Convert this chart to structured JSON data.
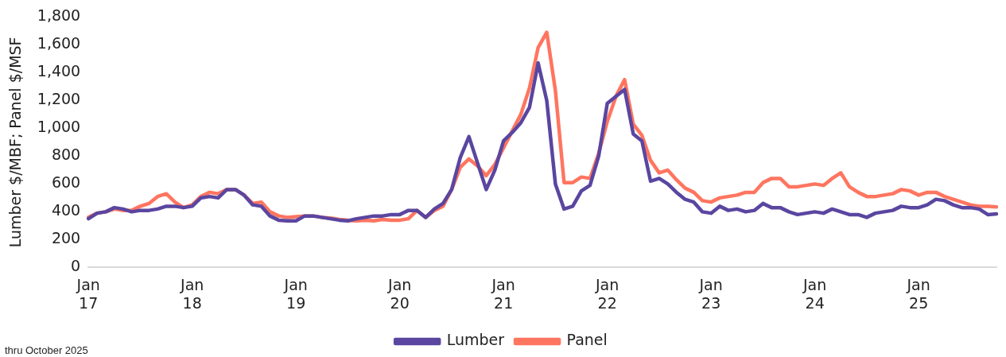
{
  "chart_data": {
    "type": "line",
    "ylabel": "Lumber $/MBF; Panel $/MSF",
    "categories": [
      "Jan\n17",
      null,
      null,
      null,
      null,
      null,
      null,
      null,
      null,
      null,
      null,
      null,
      "Jan\n18",
      null,
      null,
      null,
      null,
      null,
      null,
      null,
      null,
      null,
      null,
      null,
      "Jan\n19",
      null,
      null,
      null,
      null,
      null,
      null,
      null,
      null,
      null,
      null,
      null,
      "Jan\n20",
      null,
      null,
      null,
      null,
      null,
      null,
      null,
      null,
      null,
      null,
      null,
      "Jan\n21",
      null,
      null,
      null,
      null,
      null,
      null,
      null,
      null,
      null,
      null,
      null,
      "Jan\n22",
      null,
      null,
      null,
      null,
      null,
      null,
      null,
      null,
      null,
      null,
      null,
      "Jan\n23",
      null,
      null,
      null,
      null,
      null,
      null,
      null,
      null,
      null,
      null,
      null,
      "Jan\n24",
      null,
      null,
      null,
      null,
      null,
      null,
      null,
      null,
      null,
      null,
      null,
      "Jan\n25",
      null,
      null,
      null,
      null,
      null,
      null,
      null,
      null,
      null
    ],
    "series": [
      {
        "name": "Lumber",
        "color": "#5a46a0",
        "values": [
          350,
          390,
          400,
          430,
          420,
          400,
          410,
          410,
          420,
          440,
          440,
          430,
          440,
          500,
          510,
          500,
          560,
          560,
          520,
          450,
          440,
          370,
          340,
          335,
          335,
          370,
          370,
          360,
          350,
          340,
          335,
          350,
          360,
          370,
          370,
          380,
          380,
          410,
          410,
          360,
          420,
          460,
          560,
          790,
          940,
          750,
          560,
          700,
          910,
          970,
          1040,
          1150,
          1470,
          1200,
          600,
          420,
          440,
          550,
          590,
          800,
          1180,
          1230,
          1280,
          960,
          910,
          620,
          640,
          600,
          540,
          490,
          470,
          400,
          390,
          440,
          410,
          420,
          400,
          410,
          460,
          430,
          430,
          400,
          380,
          390,
          400,
          390,
          420,
          400,
          380,
          380,
          360,
          390,
          400,
          410,
          440,
          430,
          430,
          450,
          490,
          480,
          450,
          430,
          430,
          420,
          380,
          385
        ]
      },
      {
        "name": "Panel",
        "color": "#ff7560",
        "values": [
          360,
          390,
          400,
          420,
          410,
          410,
          440,
          460,
          510,
          530,
          470,
          430,
          450,
          510,
          540,
          530,
          560,
          560,
          520,
          460,
          470,
          400,
          370,
          360,
          365,
          370,
          370,
          360,
          355,
          345,
          340,
          335,
          340,
          335,
          345,
          340,
          340,
          350,
          410,
          360,
          410,
          440,
          560,
          720,
          780,
          730,
          660,
          740,
          860,
          980,
          1100,
          1290,
          1580,
          1690,
          1270,
          610,
          610,
          650,
          640,
          820,
          1050,
          1230,
          1350,
          1030,
          950,
          770,
          680,
          700,
          630,
          570,
          540,
          480,
          470,
          500,
          510,
          520,
          540,
          540,
          610,
          640,
          640,
          580,
          580,
          590,
          600,
          590,
          640,
          680,
          580,
          540,
          510,
          510,
          520,
          530,
          560,
          550,
          520,
          540,
          540,
          510,
          490,
          470,
          450,
          440,
          440,
          435
        ]
      }
    ],
    "ylim": [
      0,
      1800
    ],
    "yticks": [
      0,
      200,
      400,
      600,
      800,
      {
        "value": 1000,
        "label": "1,000"
      },
      {
        "value": 1200,
        "label": "1,200"
      },
      {
        "value": 1400,
        "label": "1,400"
      },
      {
        "value": 1600,
        "label": "1,600"
      },
      {
        "value": 1800,
        "label": "1,800"
      }
    ],
    "grid": false,
    "legend": "bottom",
    "marker": "none",
    "line_style": "solid",
    "annotations": [
      "thru October 2025"
    ]
  }
}
